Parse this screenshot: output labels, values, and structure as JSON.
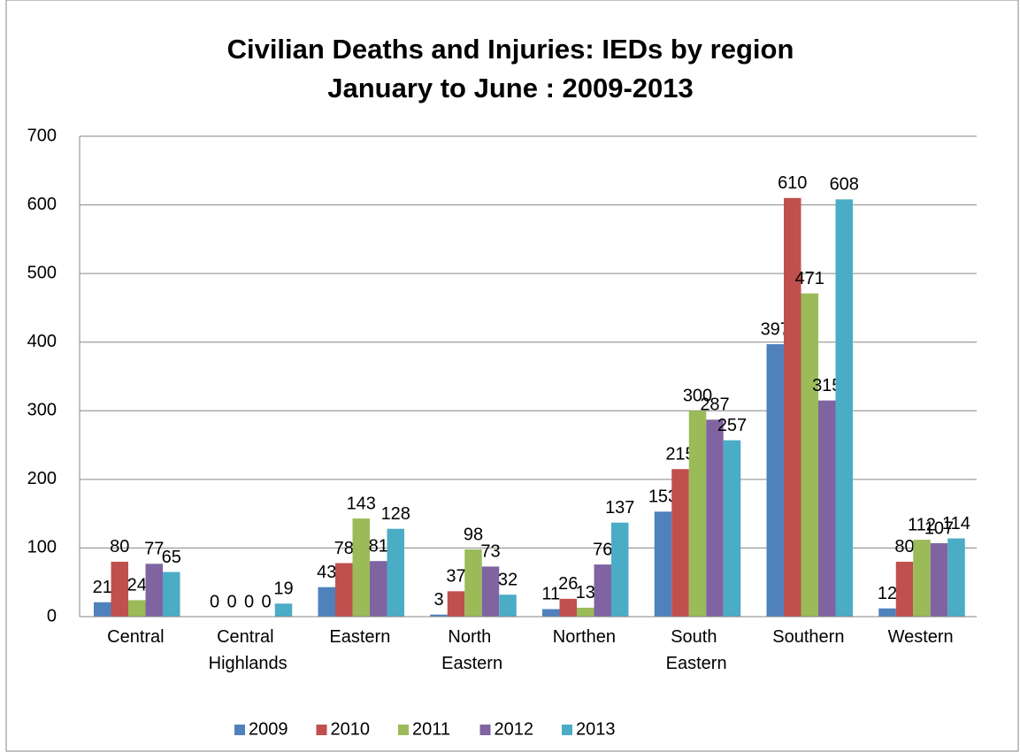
{
  "chart_data": {
    "type": "bar",
    "title": "Civilian Deaths and  Injuries: IEDs by region",
    "subtitle": "January to June : 2009-2013",
    "categories": [
      "Central",
      "Central Highlands",
      "Eastern",
      "North Eastern",
      "Northen",
      "South Eastern",
      "Southern",
      "Western"
    ],
    "series": [
      {
        "name": "2009",
        "color": "#4f81bd",
        "values": [
          21,
          0,
          43,
          3,
          11,
          153,
          397,
          12
        ]
      },
      {
        "name": "2010",
        "color": "#c0504d",
        "values": [
          80,
          0,
          78,
          37,
          26,
          215,
          610,
          80
        ]
      },
      {
        "name": "2011",
        "color": "#9bbb59",
        "values": [
          24,
          0,
          143,
          98,
          13,
          300,
          471,
          112
        ]
      },
      {
        "name": "2012",
        "color": "#8064a2",
        "values": [
          77,
          0,
          81,
          73,
          76,
          287,
          315,
          107
        ]
      },
      {
        "name": "2013",
        "color": "#4bacc6",
        "values": [
          65,
          19,
          128,
          32,
          137,
          257,
          608,
          114
        ]
      }
    ],
    "ylim": [
      0,
      700
    ],
    "yticks": [
      0,
      100,
      200,
      300,
      400,
      500,
      600,
      700
    ],
    "grid": true,
    "legend": "bottom"
  }
}
